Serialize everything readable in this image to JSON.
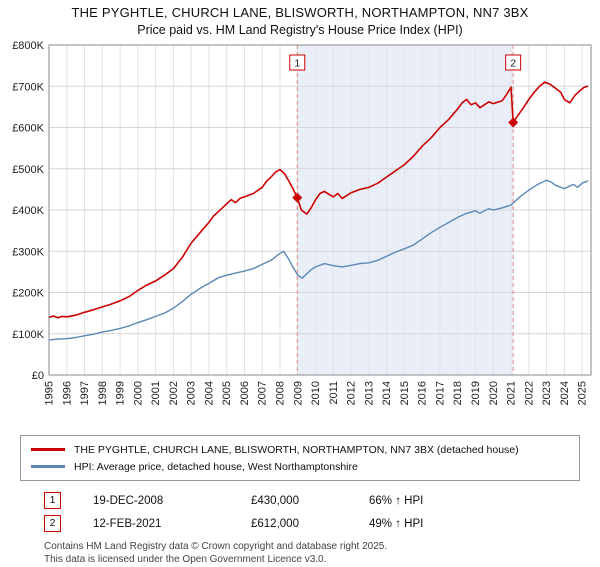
{
  "title": "THE PYGHTLE, CHURCH LANE, BLISWORTH, NORTHAMPTON, NN7 3BX",
  "subtitle": "Price paid vs. HM Land Registry's House Price Index (HPI)",
  "chart_data": {
    "type": "line",
    "x_range": [
      1995,
      2025.5
    ],
    "ylim": [
      0,
      800000
    ],
    "grid": true,
    "legend_position": "bottom",
    "y_ticks": [
      {
        "value": 0,
        "label": "£0"
      },
      {
        "value": 100000,
        "label": "£100K"
      },
      {
        "value": 200000,
        "label": "£200K"
      },
      {
        "value": 300000,
        "label": "£300K"
      },
      {
        "value": 400000,
        "label": "£400K"
      },
      {
        "value": 500000,
        "label": "£500K"
      },
      {
        "value": 600000,
        "label": "£600K"
      },
      {
        "value": 700000,
        "label": "£700K"
      },
      {
        "value": 800000,
        "label": "£800K"
      }
    ],
    "x_ticks": [
      1995,
      1996,
      1997,
      1998,
      1999,
      2000,
      2001,
      2002,
      2003,
      2004,
      2005,
      2006,
      2007,
      2008,
      2009,
      2010,
      2011,
      2012,
      2013,
      2014,
      2015,
      2016,
      2017,
      2018,
      2019,
      2020,
      2021,
      2022,
      2023,
      2024,
      2025
    ],
    "colors": {
      "shade": "#e9eef8",
      "dashed": "#dd8a8a",
      "grid_h": "#d6d6d6",
      "grid_v": "#e2e2e2"
    },
    "shaded_region": [
      2008.97,
      2021.12
    ],
    "series": [
      {
        "name": "THE PYGHTLE, CHURCH LANE, BLISWORTH, NORTHAMPTON, NN7 3BX (detached house)",
        "color": "#cc0000",
        "width": 1.6,
        "x": [
          1995.0,
          1995.25,
          1995.5,
          1995.75,
          1996.0,
          1996.5,
          1997.0,
          1997.5,
          1998.0,
          1998.5,
          1999.0,
          1999.5,
          2000.0,
          2000.5,
          2001.0,
          2001.5,
          2002.0,
          2002.5,
          2003.0,
          2003.5,
          2004.0,
          2004.25,
          2004.5,
          2004.75,
          2005.0,
          2005.25,
          2005.5,
          2005.75,
          2006.0,
          2006.5,
          2007.0,
          2007.25,
          2007.5,
          2007.75,
          2008.0,
          2008.25,
          2008.5,
          2008.75,
          2008.97,
          2009.2,
          2009.5,
          2009.75,
          2010.0,
          2010.25,
          2010.5,
          2010.75,
          2011.0,
          2011.25,
          2011.5,
          2011.75,
          2012.0,
          2012.5,
          2013.0,
          2013.5,
          2014.0,
          2014.5,
          2015.0,
          2015.5,
          2016.0,
          2016.5,
          2017.0,
          2017.5,
          2018.0,
          2018.25,
          2018.5,
          2018.75,
          2019.0,
          2019.25,
          2019.5,
          2019.75,
          2020.0,
          2020.5,
          2020.75,
          2021.0,
          2021.12,
          2021.4,
          2021.7,
          2022.0,
          2022.3,
          2022.6,
          2022.9,
          2023.2,
          2023.5,
          2023.8,
          2024.0,
          2024.3,
          2024.6,
          2024.9,
          2025.1,
          2025.3
        ],
        "values": [
          140000,
          143000,
          139000,
          142000,
          141000,
          145000,
          152000,
          158000,
          165000,
          172000,
          180000,
          190000,
          205000,
          218000,
          228000,
          242000,
          258000,
          285000,
          320000,
          345000,
          370000,
          385000,
          395000,
          405000,
          415000,
          425000,
          418000,
          428000,
          432000,
          440000,
          455000,
          470000,
          480000,
          492000,
          498000,
          488000,
          470000,
          450000,
          430000,
          400000,
          390000,
          405000,
          425000,
          440000,
          445000,
          438000,
          432000,
          440000,
          428000,
          435000,
          442000,
          450000,
          455000,
          465000,
          480000,
          495000,
          510000,
          530000,
          555000,
          575000,
          600000,
          620000,
          645000,
          660000,
          668000,
          655000,
          660000,
          648000,
          655000,
          662000,
          658000,
          665000,
          680000,
          698000,
          612000,
          630000,
          648000,
          668000,
          685000,
          700000,
          710000,
          705000,
          695000,
          685000,
          668000,
          660000,
          678000,
          690000,
          697000,
          700000
        ]
      },
      {
        "name": "HPI: Average price, detached house, West Northamptonshire",
        "color": "#5b87b7",
        "width": 1.4,
        "x": [
          1995.0,
          1995.5,
          1996.0,
          1996.5,
          1997.0,
          1997.5,
          1998.0,
          1998.5,
          1999.0,
          1999.5,
          2000.0,
          2000.5,
          2001.0,
          2001.5,
          2002.0,
          2002.5,
          2003.0,
          2003.5,
          2004.0,
          2004.5,
          2005.0,
          2005.5,
          2006.0,
          2006.5,
          2007.0,
          2007.5,
          2008.0,
          2008.2,
          2008.5,
          2008.75,
          2009.0,
          2009.25,
          2009.5,
          2009.75,
          2010.0,
          2010.5,
          2011.0,
          2011.5,
          2012.0,
          2012.5,
          2013.0,
          2013.5,
          2014.0,
          2014.5,
          2015.0,
          2015.5,
          2016.0,
          2016.5,
          2017.0,
          2017.5,
          2018.0,
          2018.5,
          2019.0,
          2019.25,
          2019.5,
          2019.75,
          2020.0,
          2020.5,
          2021.0,
          2021.5,
          2022.0,
          2022.5,
          2023.0,
          2023.25,
          2023.5,
          2024.0,
          2024.5,
          2024.75,
          2025.0,
          2025.3
        ],
        "values": [
          85000,
          87000,
          88000,
          91000,
          95000,
          99000,
          104000,
          108000,
          113000,
          119000,
          127000,
          134000,
          142000,
          150000,
          162000,
          178000,
          196000,
          210000,
          222000,
          235000,
          242000,
          247000,
          252000,
          258000,
          268000,
          278000,
          295000,
          300000,
          280000,
          260000,
          242000,
          235000,
          245000,
          255000,
          262000,
          270000,
          265000,
          262000,
          266000,
          270000,
          272000,
          278000,
          288000,
          298000,
          306000,
          315000,
          330000,
          345000,
          358000,
          370000,
          382000,
          392000,
          398000,
          392000,
          398000,
          403000,
          400000,
          405000,
          412000,
          432000,
          448000,
          462000,
          472000,
          468000,
          460000,
          452000,
          462000,
          455000,
          465000,
          470000
        ]
      }
    ],
    "markers": [
      {
        "label": "1",
        "x": 2008.97,
        "value": 430000
      },
      {
        "label": "2",
        "x": 2021.12,
        "value": 612000
      }
    ]
  },
  "annotations": [
    {
      "num": "1",
      "date": "19-DEC-2008",
      "price": "£430,000",
      "hpi": "66% ↑ HPI"
    },
    {
      "num": "2",
      "date": "12-FEB-2021",
      "price": "£612,000",
      "hpi": "49% ↑ HPI"
    }
  ],
  "footer": {
    "line1": "Contains HM Land Registry data © Crown copyright and database right 2025.",
    "line2": "This data is licensed under the Open Government Licence v3.0."
  }
}
